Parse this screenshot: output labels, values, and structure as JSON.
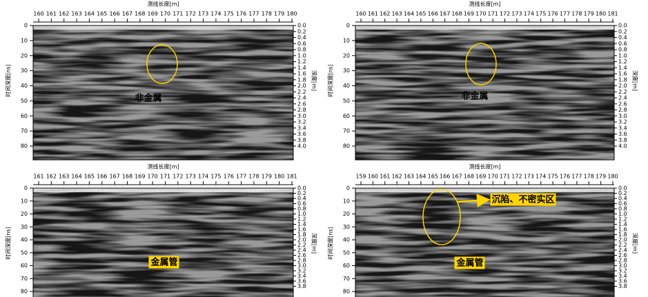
{
  "panels": [
    {
      "x_label": "测线长度[m]",
      "y_label": "时间深度[ns]",
      "y2_label": "深度[m]",
      "xticks": [
        "160",
        "161",
        "162",
        "163",
        "164",
        "165",
        "166",
        "167",
        "168",
        "169",
        "170",
        "171",
        "172",
        "173",
        "174",
        "175",
        "176",
        "177",
        "178",
        "179",
        "180"
      ],
      "yticks": [
        "0",
        "10",
        "20",
        "30",
        "40",
        "50",
        "60",
        "70",
        "80"
      ],
      "y2ticks": [
        "0.0",
        "0.2",
        "0.4",
        "0.6",
        "0.8",
        "1.0",
        "1.2",
        "1.4",
        "1.6",
        "1.8",
        "2.0",
        "2.2",
        "2.4",
        "2.6",
        "2.8",
        "3.0",
        "3.2",
        "3.4",
        "3.6",
        "3.8",
        "4.0"
      ],
      "annotations": [
        "非金属"
      ]
    },
    {
      "x_label": "测线长度[m]",
      "y_label": "时间深度[ns]",
      "y2_label": "深度[m]",
      "xticks": [
        "160",
        "161",
        "162",
        "163",
        "164",
        "165",
        "166",
        "167",
        "168",
        "169",
        "170",
        "171",
        "172",
        "173",
        "174",
        "175",
        "176",
        "177",
        "178",
        "179",
        "180",
        "181"
      ],
      "yticks": [
        "0",
        "10",
        "20",
        "30",
        "40",
        "50",
        "60",
        "70",
        "80"
      ],
      "y2ticks": [
        "0.0",
        "0.2",
        "0.4",
        "0.6",
        "0.8",
        "1.0",
        "1.2",
        "1.4",
        "1.6",
        "1.8",
        "2.0",
        "2.2",
        "2.4",
        "2.6",
        "2.8",
        "3.0",
        "3.2",
        "3.4",
        "3.6",
        "3.8",
        "4.0"
      ],
      "annotations": [
        "非金属"
      ]
    },
    {
      "x_label": "测线长度[m]",
      "y_label": "时间深度[ns]",
      "y2_label": "深度[m]",
      "xticks": [
        "161",
        "162",
        "163",
        "164",
        "165",
        "166",
        "167",
        "168",
        "169",
        "170",
        "171",
        "172",
        "173",
        "174",
        "175",
        "176",
        "177",
        "178",
        "179",
        "180",
        "181"
      ],
      "yticks": [
        "0",
        "10",
        "20",
        "30",
        "40",
        "50",
        "60",
        "70",
        "80"
      ],
      "y2ticks": [
        "0.0",
        "0.2",
        "0.4",
        "0.6",
        "0.8",
        "1.0",
        "1.2",
        "1.4",
        "1.6",
        "1.8",
        "2.0",
        "2.2",
        "2.4",
        "2.6",
        "2.8",
        "3.0",
        "3.2",
        "3.4",
        "3.6",
        "3.8"
      ],
      "annotations": [
        "金属管"
      ]
    },
    {
      "x_label": "测线长度[m]",
      "y_label": "时间深度[ns]",
      "y2_label": "深度[m]",
      "xticks": [
        "159",
        "160",
        "161",
        "162",
        "163",
        "164",
        "165",
        "166",
        "167",
        "168",
        "169",
        "170",
        "171",
        "172",
        "173",
        "174",
        "175",
        "176",
        "177",
        "178",
        "179",
        "180"
      ],
      "yticks": [
        "0",
        "10",
        "20",
        "30",
        "40",
        "50",
        "60",
        "70",
        "80"
      ],
      "y2ticks": [
        "0.0",
        "0.2",
        "0.4",
        "0.6",
        "0.8",
        "1.0",
        "1.2",
        "1.4",
        "1.6",
        "1.8",
        "2.0",
        "2.2",
        "2.4",
        "2.6",
        "2.8",
        "3.0",
        "3.2",
        "3.4",
        "3.6",
        "3.8"
      ],
      "annotations": [
        "金属管",
        "沉陷、不密实区"
      ]
    }
  ]
}
